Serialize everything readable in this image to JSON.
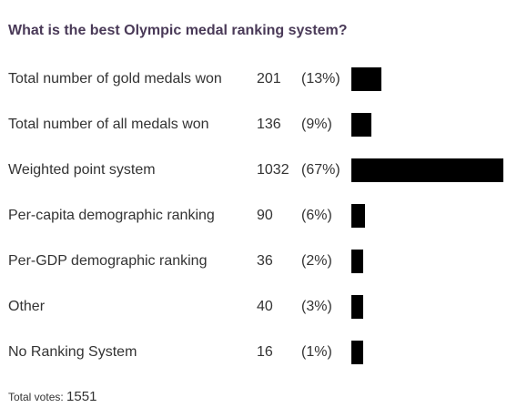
{
  "poll": {
    "question": "What is the best Olympic medal ranking system?",
    "total_label": "Total votes:",
    "total_value": "1551",
    "bar_color": "#000000"
  },
  "chart_data": {
    "type": "bar",
    "orientation": "horizontal",
    "title": "What is the best Olympic medal ranking system?",
    "categories": [
      "Total number of gold medals won",
      "Total number of all medals won",
      "Weighted point system",
      "Per-capita demographic ranking",
      "Per-GDP demographic ranking",
      "Other",
      "No Ranking System"
    ],
    "values": [
      201,
      136,
      1032,
      90,
      36,
      40,
      16
    ],
    "percent_labels": [
      "(13%)",
      "(9%)",
      "(67%)",
      "(6%)",
      "(2%)",
      "(3%)",
      "(1%)"
    ],
    "percent_values": [
      13,
      9,
      67,
      6,
      2,
      3,
      1
    ],
    "total": 1551
  }
}
